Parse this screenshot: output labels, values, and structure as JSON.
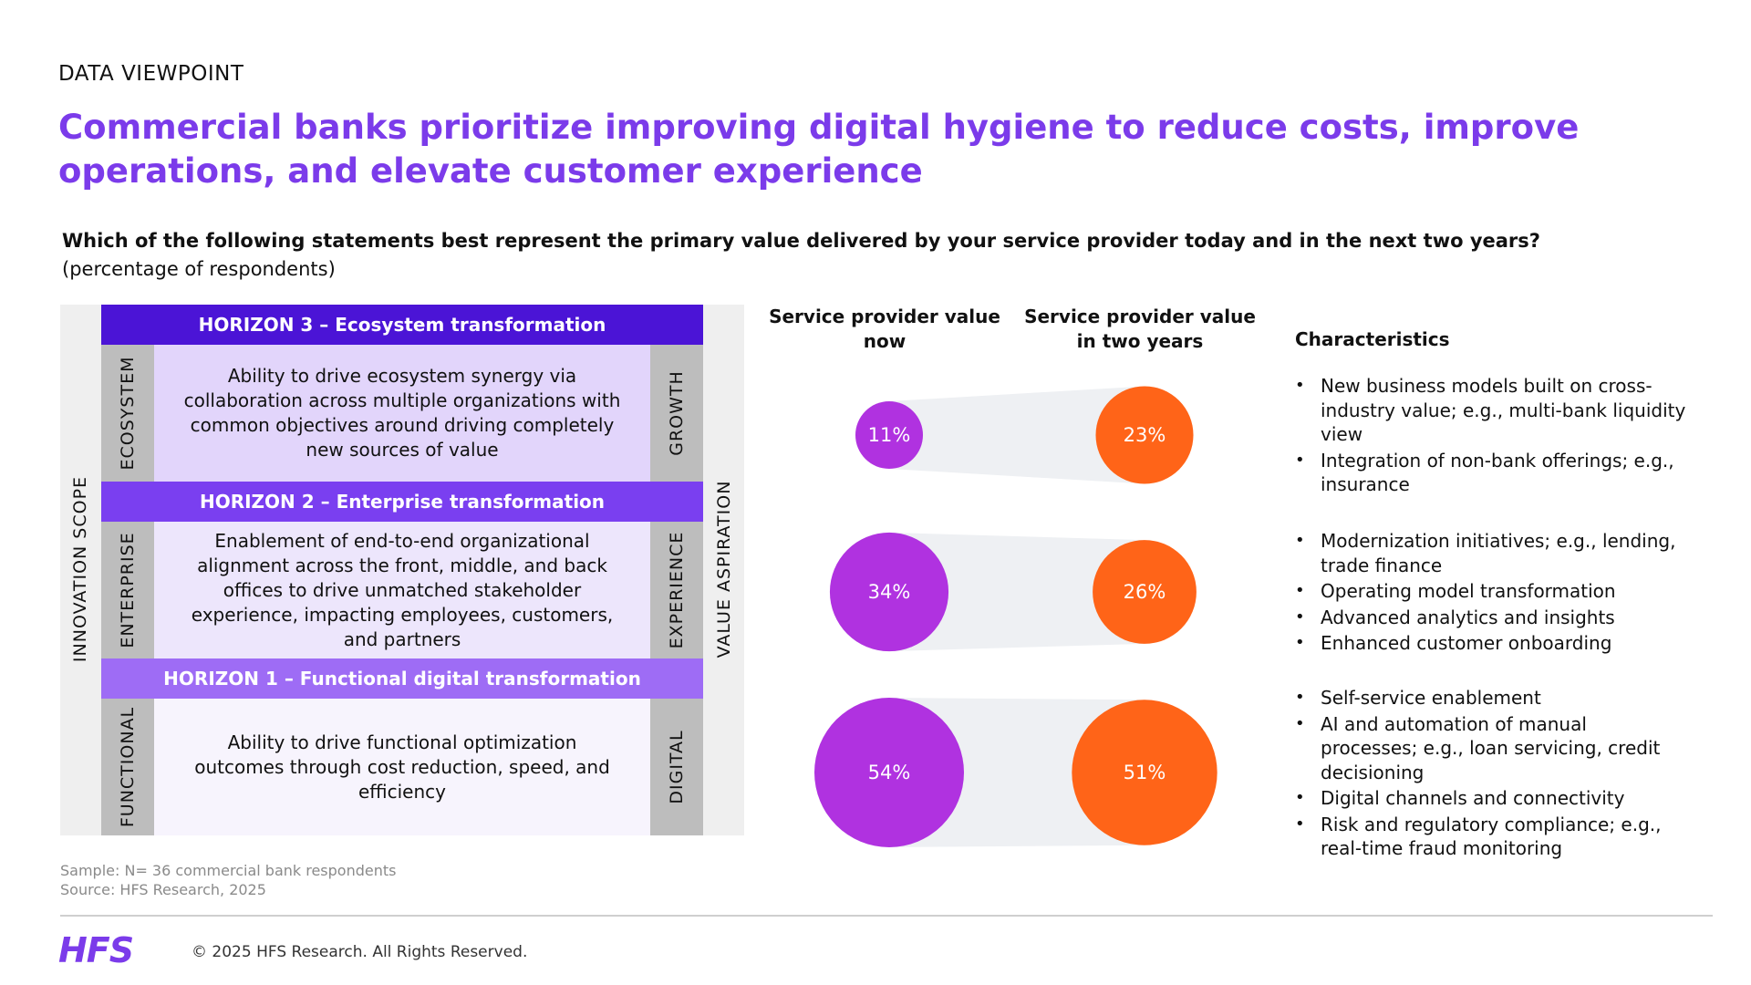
{
  "kicker": "DATA VIEWPOINT",
  "title": "Commercial banks prioritize improving digital hygiene to reduce costs, improve operations, and elevate customer experience",
  "question": "Which of the following statements best represent the primary value delivered by your service provider today and in the next two years?",
  "question_sub": "(percentage of respondents)",
  "framework": {
    "outer_left": "INNOVATION SCOPE",
    "outer_right": "VALUE ASPIRATION",
    "rows": [
      {
        "horizon": "HORIZON 3 – Ecosystem transformation",
        "left": "ECOSYSTEM",
        "right": "GROWTH",
        "desc": "Ability to drive ecosystem synergy via collaboration across multiple organizations with common objectives around driving completely new sources of value",
        "bar_color": "#4B14D6",
        "body_color": "#E2D5FB"
      },
      {
        "horizon": "HORIZON 2 – Enterprise transformation",
        "left": "ENTERPRISE",
        "right": "EXPERIENCE",
        "desc": "Enablement of end-to-end organizational alignment across the front, middle, and back offices to drive unmatched stakeholder experience, impacting employees, customers, and partners",
        "bar_color": "#7A3FF0",
        "body_color": "#EDE6FC"
      },
      {
        "horizon": "HORIZON 1 – Functional digital transformation",
        "left": "FUNCTIONAL",
        "right": "DIGITAL",
        "desc": "Ability to drive functional optimization outcomes through cost reduction, speed, and efficiency",
        "bar_color": "#9E6CF5",
        "body_color": "#F7F4FD"
      }
    ]
  },
  "chart_data": {
    "type": "bubble",
    "columns": [
      "Service provider value now",
      "Service provider value in two years"
    ],
    "categories": [
      "HORIZON 3 – Ecosystem transformation",
      "HORIZON 2 – Enterprise transformation",
      "HORIZON 1 – Functional digital transformation"
    ],
    "series": [
      {
        "values": [
          11,
          34,
          54
        ],
        "labels": [
          "11%",
          "34%",
          "54%"
        ],
        "color": "#B032E0"
      },
      {
        "values": [
          23,
          26,
          51
        ],
        "labels": [
          "23%",
          "26%",
          "51%"
        ],
        "color": "#FF6418"
      }
    ],
    "connector_color": "#EEF0F3"
  },
  "characteristics_heading": "Characteristics",
  "characteristics": [
    [
      "New business models built on cross-industry value; e.g., multi-bank liquidity view",
      "Integration of non-bank offerings; e.g., insurance"
    ],
    [
      "Modernization initiatives; e.g., lending, trade finance",
      "Operating model transformation",
      "Advanced analytics and insights",
      "Enhanced customer onboarding"
    ],
    [
      "Self-service enablement",
      "AI and automation of manual processes; e.g., loan servicing, credit decisioning",
      "Digital channels and connectivity",
      "Risk and regulatory compliance; e.g., real-time fraud monitoring"
    ]
  ],
  "sample": "Sample: N= 36 commercial bank respondents",
  "source": "Source: HFS Research, 2025",
  "logo": "HFS",
  "copyright": "© 2025 HFS Research. All Rights Reserved."
}
